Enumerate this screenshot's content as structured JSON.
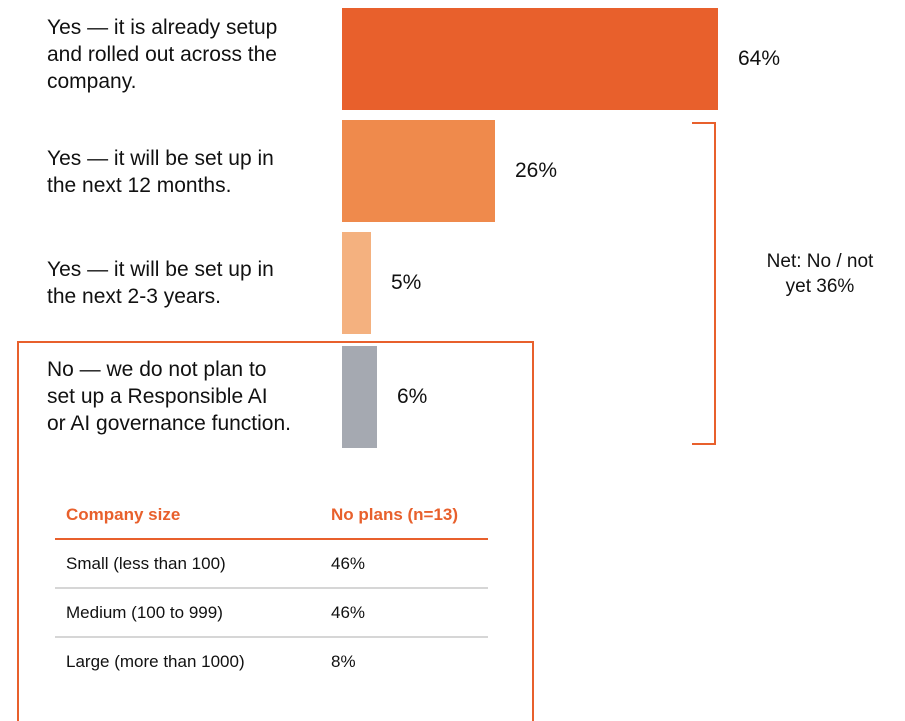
{
  "chart_data": {
    "type": "bar",
    "orientation": "horizontal",
    "categories": [
      "Yes — it is already setup\nand rolled out across the\ncompany.",
      "Yes — it will be set up in\nthe next 12 months.",
      "Yes — it will be set up in\nthe next 2-3 years.",
      "No — we do not plan to\nset up a Responsible AI\nor AI  governance function."
    ],
    "values": [
      64,
      26,
      5,
      6
    ],
    "value_labels": [
      "64%",
      "26%",
      "5%",
      "6%"
    ],
    "colors": [
      "#e8602c",
      "#ef8a4c",
      "#f4b17f",
      "#a5a9b1"
    ],
    "xlim": [
      0,
      64
    ],
    "annotation": {
      "text": "Net: No / not\nyet 36%",
      "color": "#e8602c"
    }
  },
  "table": {
    "headers": [
      "Company size",
      "No plans (n=13)"
    ],
    "rows": [
      [
        "Small (less than 100)",
        "46%"
      ],
      [
        "Medium (100 to 999)",
        "46%"
      ],
      [
        "Large (more than 1000)",
        "8%"
      ]
    ]
  }
}
